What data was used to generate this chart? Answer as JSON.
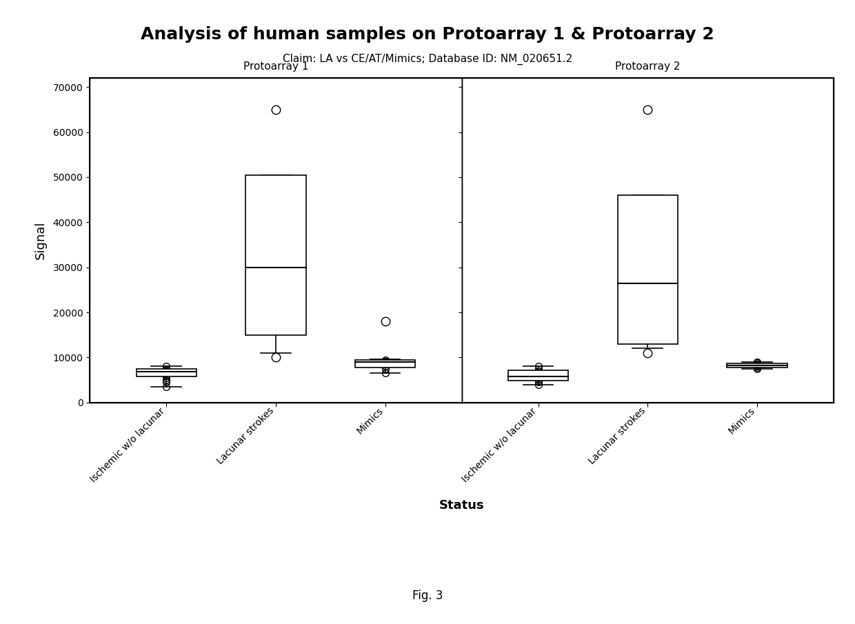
{
  "title": "Analysis of human samples on Protoarray 1 & Protoarray 2",
  "subtitle": "Claim: LA vs CE/AT/Mimics; Database ID: NM_020651.2",
  "xlabel": "Status",
  "ylabel": "Signal",
  "fig_label": "Fig. 3",
  "panel_labels": [
    "Protoarray 1",
    "Protoarray 2"
  ],
  "categories": [
    "Ischemic w/o lacunar",
    "Lacunar strokes",
    "Mimics"
  ],
  "ylim": [
    0,
    72000
  ],
  "yticks": [
    0,
    10000,
    20000,
    30000,
    40000,
    50000,
    60000,
    70000
  ],
  "panel1": {
    "ischemic": {
      "data": [
        6500,
        7500,
        7000,
        8000,
        6800,
        7200,
        5500,
        5000,
        3500,
        4500,
        6000,
        6200
      ],
      "q1": 5800,
      "median": 6800,
      "q3": 7400,
      "whisker_low": 3500,
      "whisker_high": 8000,
      "outliers": []
    },
    "lacunar": {
      "data": [
        37000,
        17000,
        30000
      ],
      "q1": 15000,
      "median": 30000,
      "q3": 50500,
      "whisker_low": 11000,
      "whisker_high": 50500,
      "outliers": [
        65000,
        10000
      ]
    },
    "mimics": {
      "data": [
        9000,
        9200,
        8500,
        9500,
        8000,
        8800,
        9100,
        7500,
        6500
      ],
      "q1": 7800,
      "median": 9000,
      "q3": 9400,
      "whisker_low": 6500,
      "whisker_high": 9600,
      "outliers": [
        18000
      ]
    }
  },
  "panel2": {
    "ischemic": {
      "data": [
        6500,
        7500,
        5000,
        4500,
        5500,
        6000,
        4000,
        8000,
        7000
      ],
      "q1": 4800,
      "median": 5800,
      "q3": 7200,
      "whisker_low": 4000,
      "whisker_high": 8000,
      "outliers": []
    },
    "lacunar": {
      "data": [
        27000,
        26000,
        25000
      ],
      "q1": 13000,
      "median": 26500,
      "q3": 46000,
      "whisker_low": 12000,
      "whisker_high": 46000,
      "outliers": [
        65000,
        11000
      ]
    },
    "mimics": {
      "data": [
        8000,
        8500,
        8200,
        7800,
        7500,
        9000,
        8800
      ],
      "q1": 7800,
      "median": 8200,
      "q3": 8700,
      "whisker_low": 7500,
      "whisker_high": 9000,
      "outliers": []
    }
  },
  "background_color": "#ffffff"
}
